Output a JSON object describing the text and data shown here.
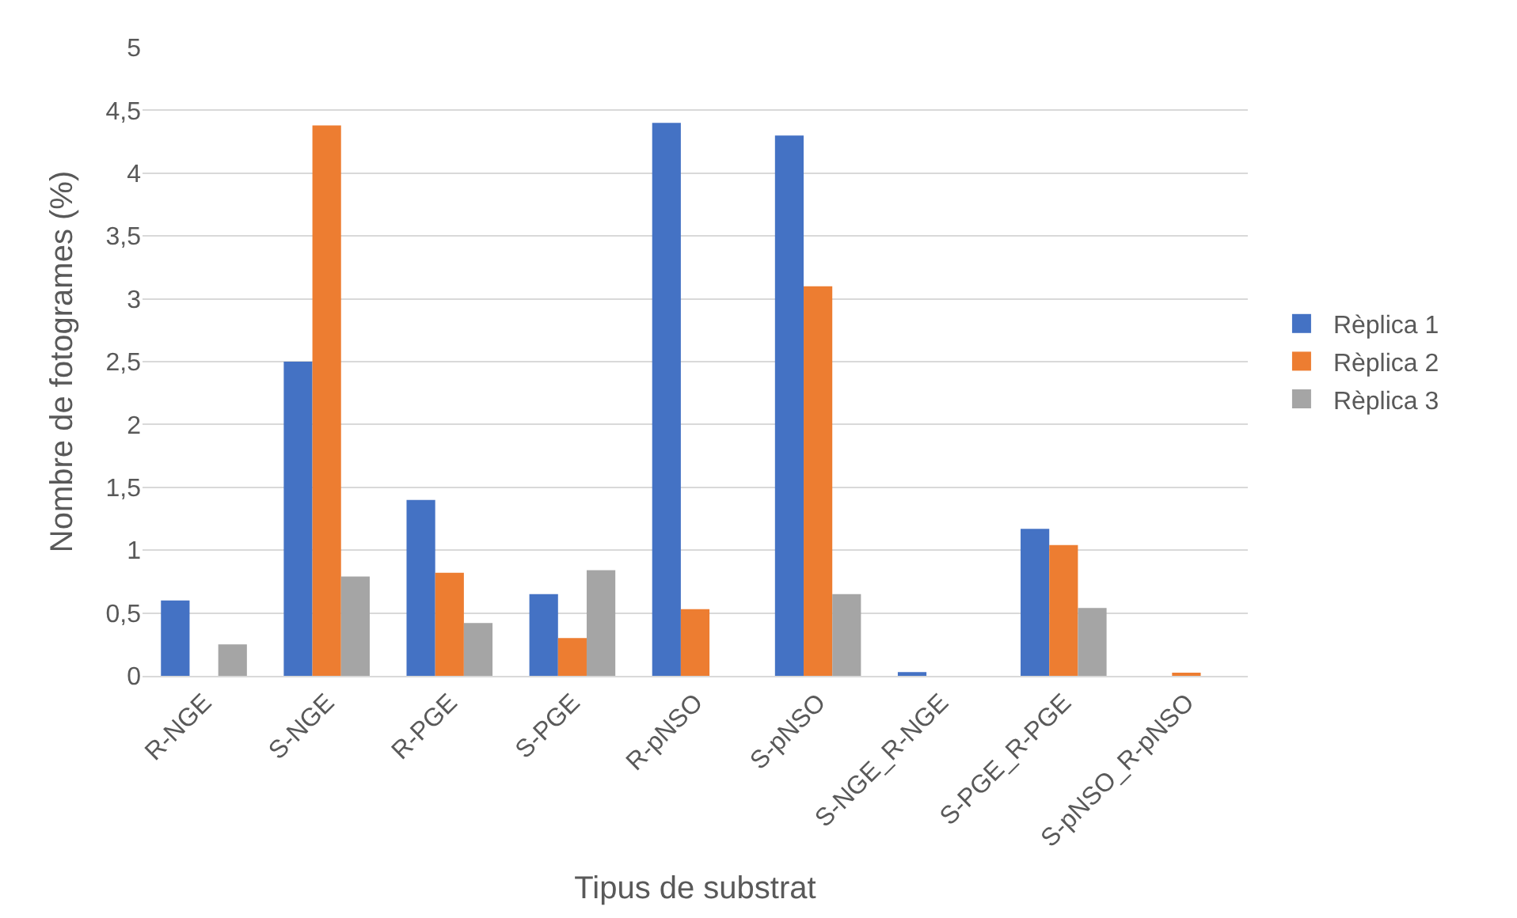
{
  "chart_data": {
    "type": "bar",
    "xlabel": "Tipus de substrat",
    "ylabel": "Nombre de fotogrames (%)",
    "categories": [
      "R-NGE",
      "S-NGE",
      "R-PGE",
      "S-PGE",
      "R-pNSO",
      "S-pNSO",
      "S-NGE_R-NGE",
      "S-PGE_R-PGE",
      "S-pNSO_R-pNSO"
    ],
    "series": [
      {
        "name": "Rèplica 1",
        "color": "#4472c4",
        "values": [
          0.6,
          2.5,
          1.4,
          0.65,
          4.4,
          4.3,
          0.03,
          1.17,
          0
        ]
      },
      {
        "name": "Rèplica 2",
        "color": "#ed7d31",
        "values": [
          0,
          4.38,
          0.82,
          0.3,
          0.53,
          3.1,
          0,
          1.04,
          0.02
        ]
      },
      {
        "name": "Rèplica 3",
        "color": "#a5a5a5",
        "values": [
          0.25,
          0.79,
          0.42,
          0.84,
          0,
          0.65,
          0,
          0.54,
          0
        ]
      }
    ],
    "ylim": [
      0,
      5
    ],
    "yticks": [
      0,
      {
        "value": 0.5,
        "label": "0,5"
      },
      1,
      {
        "value": 1.5,
        "label": "1,5"
      },
      2,
      {
        "value": 2.5,
        "label": "2,5"
      },
      3,
      {
        "value": 3.5,
        "label": "3,5"
      },
      4,
      {
        "value": 4.5,
        "label": "4,5"
      },
      5
    ],
    "grid": "y",
    "legend": "right"
  }
}
